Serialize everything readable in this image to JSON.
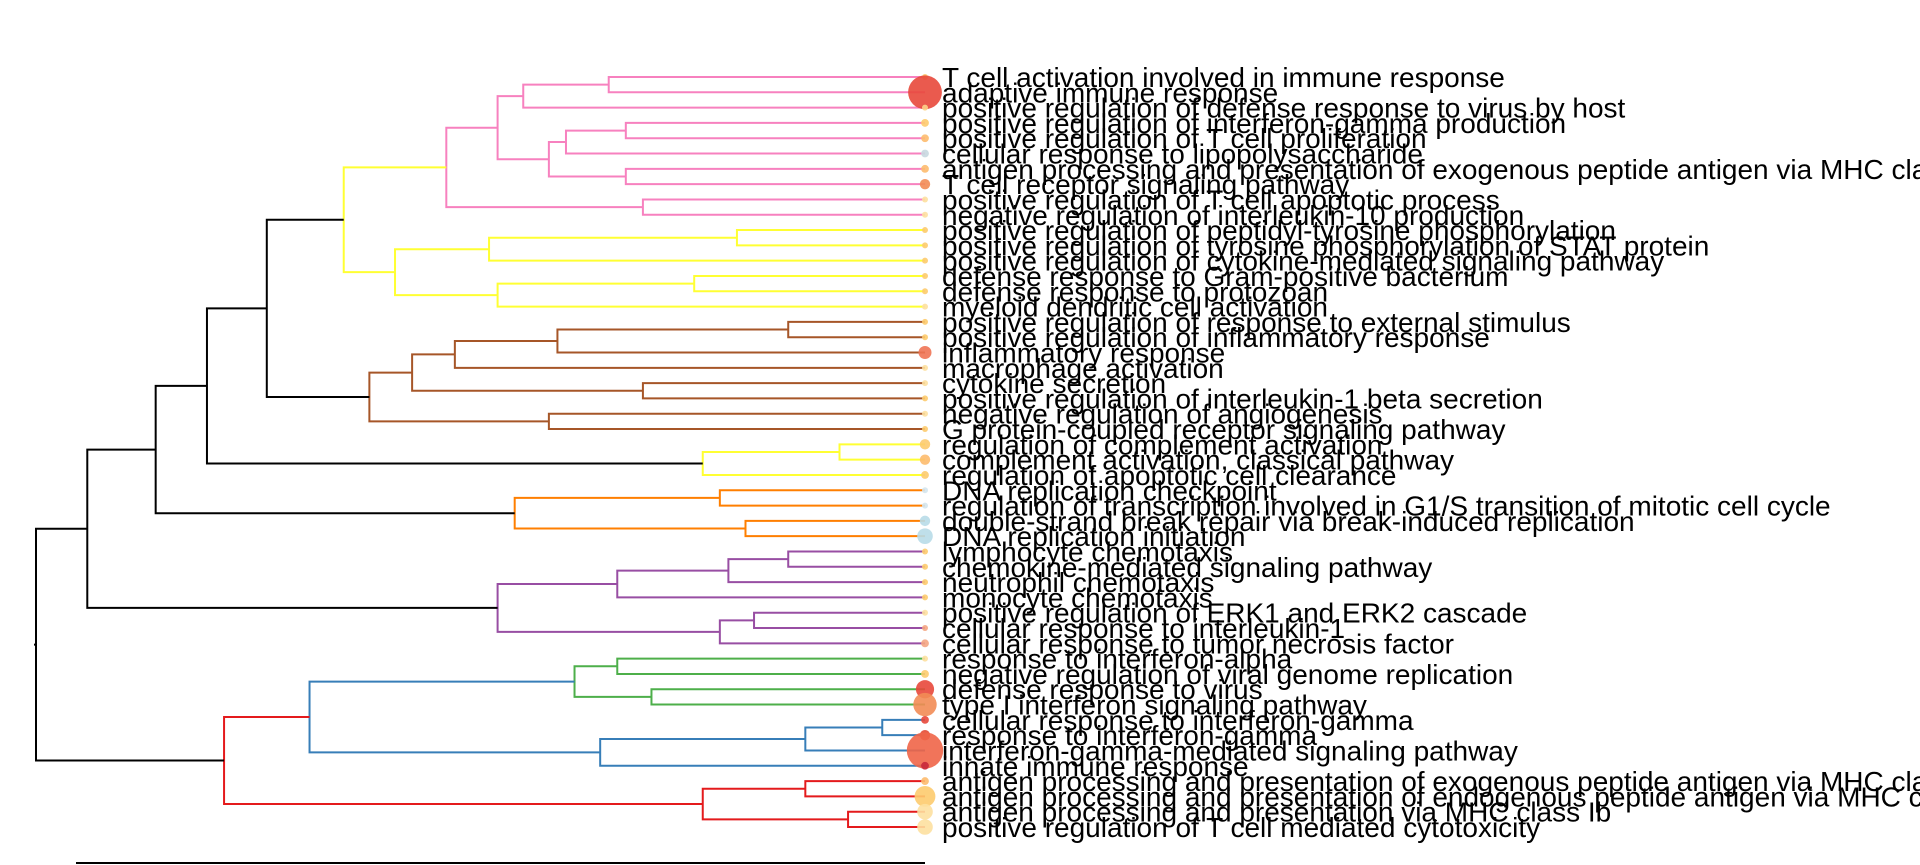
{
  "chart_data": {
    "type": "dendrogram",
    "leaf_count": 50,
    "colors": {
      "trunk": "#000000",
      "pink": "#F781BF",
      "yellow": "#FFFF33",
      "brown": "#A65628",
      "orange": "#FF7F00",
      "purple": "#984EA3",
      "green": "#4DAF4A",
      "blue": "#377EB8",
      "red": "#E41A1C"
    },
    "leaves": [
      {
        "label": "T cell activation involved in immune response",
        "dot_color": "#FDCB6E",
        "dot_size": 2
      },
      {
        "label": "adaptive immune response",
        "dot_color": "#E8483B",
        "dot_size": 13
      },
      {
        "label": "positive regulation of defense response to virus by host",
        "dot_color": "#FDD38A",
        "dot_size": 2
      },
      {
        "label": "positive regulation of interferon-gamma production",
        "dot_color": "#FDCB6E",
        "dot_size": 3
      },
      {
        "label": "positive regulation of T cell proliferation",
        "dot_color": "#FDBB6E",
        "dot_size": 3
      },
      {
        "label": "cellular response to lipopolysaccharide",
        "dot_color": "#C8D8E0",
        "dot_size": 3
      },
      {
        "label": "antigen processing and presentation of exogenous peptide antigen via MHC class I",
        "dot_color": "#FDBB6E",
        "dot_size": 3
      },
      {
        "label": "T cell receptor signaling pathway",
        "dot_color": "#F28C55",
        "dot_size": 4
      },
      {
        "label": "positive regulation of T cell apoptotic process",
        "dot_color": "#FDE0A0",
        "dot_size": 2
      },
      {
        "label": "negative regulation of interleukin-10 production",
        "dot_color": "#FDE0A0",
        "dot_size": 2
      },
      {
        "label": "positive regulation of peptidyl-tyrosine phosphorylation",
        "dot_color": "#FDCB6E",
        "dot_size": 2
      },
      {
        "label": "positive regulation of tyrosine phosphorylation of STAT protein",
        "dot_color": "#FDCB6E",
        "dot_size": 2
      },
      {
        "label": "positive regulation of cytokine-mediated signaling pathway",
        "dot_color": "#FDCB6E",
        "dot_size": 2
      },
      {
        "label": "defense response to Gram-positive bacterium",
        "dot_color": "#FDCB6E",
        "dot_size": 2
      },
      {
        "label": "defense response to protozoan",
        "dot_color": "#FDCB6E",
        "dot_size": 2
      },
      {
        "label": "myeloid dendritic cell activation",
        "dot_color": "#FDE0A0",
        "dot_size": 2
      },
      {
        "label": "positive regulation of response to external stimulus",
        "dot_color": "#FDCB6E",
        "dot_size": 2
      },
      {
        "label": "positive regulation of inflammatory response",
        "dot_color": "#FDCB6E",
        "dot_size": 2
      },
      {
        "label": "inflammatory response",
        "dot_color": "#EF7455",
        "dot_size": 5
      },
      {
        "label": "macrophage activation",
        "dot_color": "#FDE0A0",
        "dot_size": 2
      },
      {
        "label": "cytokine secretion",
        "dot_color": "#FDE0A0",
        "dot_size": 2
      },
      {
        "label": "positive regulation of interleukin-1 beta secretion",
        "dot_color": "#FDCB6E",
        "dot_size": 2
      },
      {
        "label": "negative regulation of angiogenesis",
        "dot_color": "#FDE0A0",
        "dot_size": 2
      },
      {
        "label": "G protein-coupled receptor signaling pathway",
        "dot_color": "#FDCB6E",
        "dot_size": 2
      },
      {
        "label": "regulation of complement activation",
        "dot_color": "#FDCB6E",
        "dot_size": 4
      },
      {
        "label": "complement activation, classical pathway",
        "dot_color": "#FDBB6E",
        "dot_size": 4
      },
      {
        "label": "regulation of apoptotic cell clearance",
        "dot_color": "#FDCB6E",
        "dot_size": 3
      },
      {
        "label": "DNA replication checkpoint",
        "dot_color": "#D4E6EE",
        "dot_size": 2
      },
      {
        "label": "regulation of transcription involved in G1/S transition of mitotic cell cycle",
        "dot_color": "#D4E6EE",
        "dot_size": 2
      },
      {
        "label": "double-strand break repair via break-induced replication",
        "dot_color": "#B8DCE8",
        "dot_size": 4
      },
      {
        "label": "DNA replication initiation",
        "dot_color": "#B8DCE8",
        "dot_size": 6
      },
      {
        "label": "lymphocyte chemotaxis",
        "dot_color": "#FDCB6E",
        "dot_size": 2
      },
      {
        "label": "chemokine-mediated signaling pathway",
        "dot_color": "#FDCB6E",
        "dot_size": 2
      },
      {
        "label": "neutrophil chemotaxis",
        "dot_color": "#FDCB6E",
        "dot_size": 2
      },
      {
        "label": "monocyte chemotaxis",
        "dot_color": "#FDCB6E",
        "dot_size": 2
      },
      {
        "label": "positive regulation of ERK1 and ERK2 cascade",
        "dot_color": "#FDE0A0",
        "dot_size": 2
      },
      {
        "label": "cellular response to interleukin-1",
        "dot_color": "#F4A582",
        "dot_size": 2
      },
      {
        "label": "cellular response to tumor necrosis factor",
        "dot_color": "#F4A582",
        "dot_size": 3
      },
      {
        "label": "response to interferon-alpha",
        "dot_color": "#FDE0A0",
        "dot_size": 2
      },
      {
        "label": "negative regulation of viral genome replication",
        "dot_color": "#FDCB6E",
        "dot_size": 3
      },
      {
        "label": "defense response to virus",
        "dot_color": "#E8483B",
        "dot_size": 7
      },
      {
        "label": "type I interferon signaling pathway",
        "dot_color": "#F28C55",
        "dot_size": 9
      },
      {
        "label": "cellular response to interferon-gamma",
        "dot_color": "#E8483B",
        "dot_size": 3
      },
      {
        "label": "response to interferon-gamma",
        "dot_color": "#E34A33",
        "dot_size": 4
      },
      {
        "label": "interferon-gamma-mediated signaling pathway",
        "dot_color": "#EF6548",
        "dot_size": 14
      },
      {
        "label": "innate immune response",
        "dot_color": "#C8283B",
        "dot_size": 3
      },
      {
        "label": "antigen processing and presentation of exogenous peptide antigen via MHC class II",
        "dot_color": "#FDBB6E",
        "dot_size": 3
      },
      {
        "label": "antigen processing and presentation of endogenous peptide antigen via MHC class I",
        "dot_color": "#FDCB6E",
        "dot_size": 8
      },
      {
        "label": "antigen processing and presentation via MHC class Ib",
        "dot_color": "#FDE0A0",
        "dot_size": 6
      },
      {
        "label": "positive regulation of T cell mediated cytotoxicity",
        "dot_color": "#FDE0A0",
        "dot_size": 6
      }
    ],
    "merges": [
      {
        "id": "t1",
        "left": 0,
        "right": 1,
        "height": 0.37,
        "color": "pink"
      },
      {
        "id": "t2",
        "left": "t1",
        "right": 2,
        "height": 0.47,
        "color": "pink"
      },
      {
        "id": "t3",
        "left": 3,
        "right": 4,
        "height": 0.35,
        "color": "pink"
      },
      {
        "id": "t4",
        "left": "t3",
        "right": 5,
        "height": 0.42,
        "color": "pink"
      },
      {
        "id": "t5",
        "left": 6,
        "right": 7,
        "height": 0.35,
        "color": "pink"
      },
      {
        "id": "t6",
        "left": "t4",
        "right": "t5",
        "height": 0.44,
        "color": "pink"
      },
      {
        "id": "t7",
        "left": "t2",
        "right": "t6",
        "height": 0.5,
        "color": "pink"
      },
      {
        "id": "t8",
        "left": 8,
        "right": 9,
        "height": 0.33,
        "color": "pink"
      },
      {
        "id": "t9",
        "left": "t7",
        "right": "t8",
        "height": 0.56,
        "color": "pink"
      },
      {
        "id": "t10",
        "left": 10,
        "right": 11,
        "height": 0.22,
        "color": "yellow"
      },
      {
        "id": "t11",
        "left": "t10",
        "right": 12,
        "height": 0.51,
        "color": "yellow"
      },
      {
        "id": "t12",
        "left": 13,
        "right": 14,
        "height": 0.27,
        "color": "yellow"
      },
      {
        "id": "t13",
        "left": "t12",
        "right": 15,
        "height": 0.5,
        "color": "yellow"
      },
      {
        "id": "t14",
        "left": "t11",
        "right": "t13",
        "height": 0.62,
        "color": "yellow"
      },
      {
        "id": "t15",
        "left": "t9",
        "right": "t14",
        "height": 0.68,
        "color": "yellow"
      },
      {
        "id": "t16",
        "left": 16,
        "right": 17,
        "height": 0.16,
        "color": "brown"
      },
      {
        "id": "t17",
        "left": "t16",
        "right": 18,
        "height": 0.43,
        "color": "brown"
      },
      {
        "id": "t18",
        "left": "t17",
        "right": 19,
        "height": 0.55,
        "color": "brown"
      },
      {
        "id": "t19",
        "left": 20,
        "right": 21,
        "height": 0.33,
        "color": "brown"
      },
      {
        "id": "t20",
        "left": "t18",
        "right": "t19",
        "height": 0.6,
        "color": "brown"
      },
      {
        "id": "t21",
        "left": 22,
        "right": 23,
        "height": 0.44,
        "color": "brown"
      },
      {
        "id": "t22",
        "left": "t20",
        "right": "t21",
        "height": 0.65,
        "color": "brown"
      },
      {
        "id": "t23",
        "left": "t15",
        "right": "t22",
        "height": 0.77,
        "color": "trunk"
      },
      {
        "id": "t24",
        "left": 24,
        "right": 25,
        "height": 0.1,
        "color": "yellow"
      },
      {
        "id": "t25",
        "left": "t24",
        "right": 26,
        "height": 0.26,
        "color": "yellow"
      },
      {
        "id": "t26",
        "left": "t23",
        "right": "t25",
        "height": 0.84,
        "color": "trunk"
      },
      {
        "id": "t27",
        "left": 27,
        "right": 28,
        "height": 0.24,
        "color": "orange"
      },
      {
        "id": "t28",
        "left": 29,
        "right": 30,
        "height": 0.21,
        "color": "orange"
      },
      {
        "id": "t29",
        "left": "t27",
        "right": "t28",
        "height": 0.48,
        "color": "orange"
      },
      {
        "id": "t30",
        "left": "t26",
        "right": "t29",
        "height": 0.9,
        "color": "trunk"
      },
      {
        "id": "t31",
        "left": 31,
        "right": 32,
        "height": 0.16,
        "color": "purple"
      },
      {
        "id": "t32",
        "left": "t31",
        "right": 33,
        "height": 0.23,
        "color": "purple"
      },
      {
        "id": "t33",
        "left": "t32",
        "right": 34,
        "height": 0.36,
        "color": "purple"
      },
      {
        "id": "t34",
        "left": 35,
        "right": 36,
        "height": 0.2,
        "color": "purple"
      },
      {
        "id": "t35",
        "left": "t34",
        "right": 37,
        "height": 0.24,
        "color": "purple"
      },
      {
        "id": "t36",
        "left": "t33",
        "right": "t35",
        "height": 0.5,
        "color": "purple"
      },
      {
        "id": "t37",
        "left": "t30",
        "right": "t36",
        "height": 0.98,
        "color": "trunk"
      },
      {
        "id": "t38",
        "left": 38,
        "right": 39,
        "height": 0.36,
        "color": "green"
      },
      {
        "id": "t39",
        "left": 40,
        "right": 41,
        "height": 0.32,
        "color": "green"
      },
      {
        "id": "t40",
        "left": "t38",
        "right": "t39",
        "height": 0.41,
        "color": "green"
      },
      {
        "id": "t41",
        "left": 42,
        "right": 43,
        "height": 0.05,
        "color": "blue"
      },
      {
        "id": "t42",
        "left": "t41",
        "right": 44,
        "height": 0.14,
        "color": "blue"
      },
      {
        "id": "t43",
        "left": "t42",
        "right": 45,
        "height": 0.38,
        "color": "blue"
      },
      {
        "id": "t44",
        "left": "t40",
        "right": "t43",
        "height": 0.72,
        "color": "blue"
      },
      {
        "id": "t45",
        "left": 46,
        "right": 47,
        "height": 0.14,
        "color": "red"
      },
      {
        "id": "t46",
        "left": 48,
        "right": 49,
        "height": 0.09,
        "color": "red"
      },
      {
        "id": "t47",
        "left": "t45",
        "right": "t46",
        "height": 0.26,
        "color": "red"
      },
      {
        "id": "t48",
        "left": "t44",
        "right": "t47",
        "height": 0.82,
        "color": "red"
      },
      {
        "id": "t49",
        "left": "t37",
        "right": "t48",
        "height": 1.04,
        "color": "trunk"
      }
    ]
  }
}
